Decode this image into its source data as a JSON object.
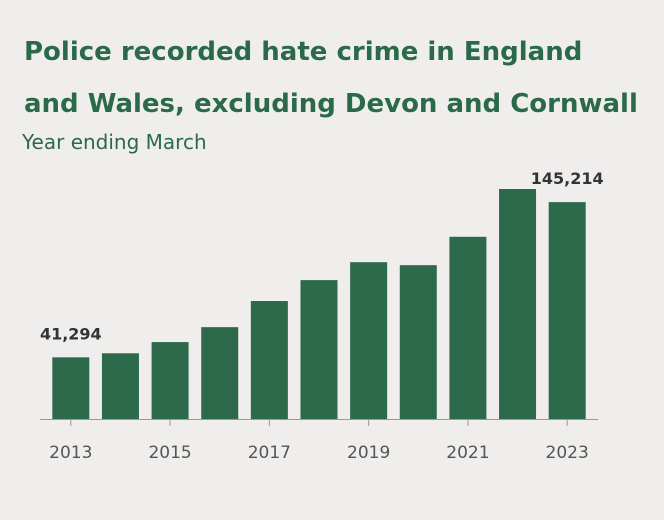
{
  "chart_data": {
    "type": "bar",
    "title": "Police recorded hate crime in England and Wales, excluding Devon and Cornwall",
    "subtitle": "Year ending March",
    "categories": [
      "2013",
      null,
      "2015",
      null,
      "2017",
      null,
      "2019",
      null,
      "2021",
      null,
      "2023"
    ],
    "values": [
      41294,
      44000,
      51500,
      61500,
      79000,
      93000,
      105000,
      103000,
      122000,
      154000,
      145214
    ],
    "value_labels": [
      "41,294",
      null,
      null,
      null,
      null,
      null,
      null,
      null,
      null,
      null,
      "145,214"
    ],
    "color": "#2d6a4c"
  }
}
